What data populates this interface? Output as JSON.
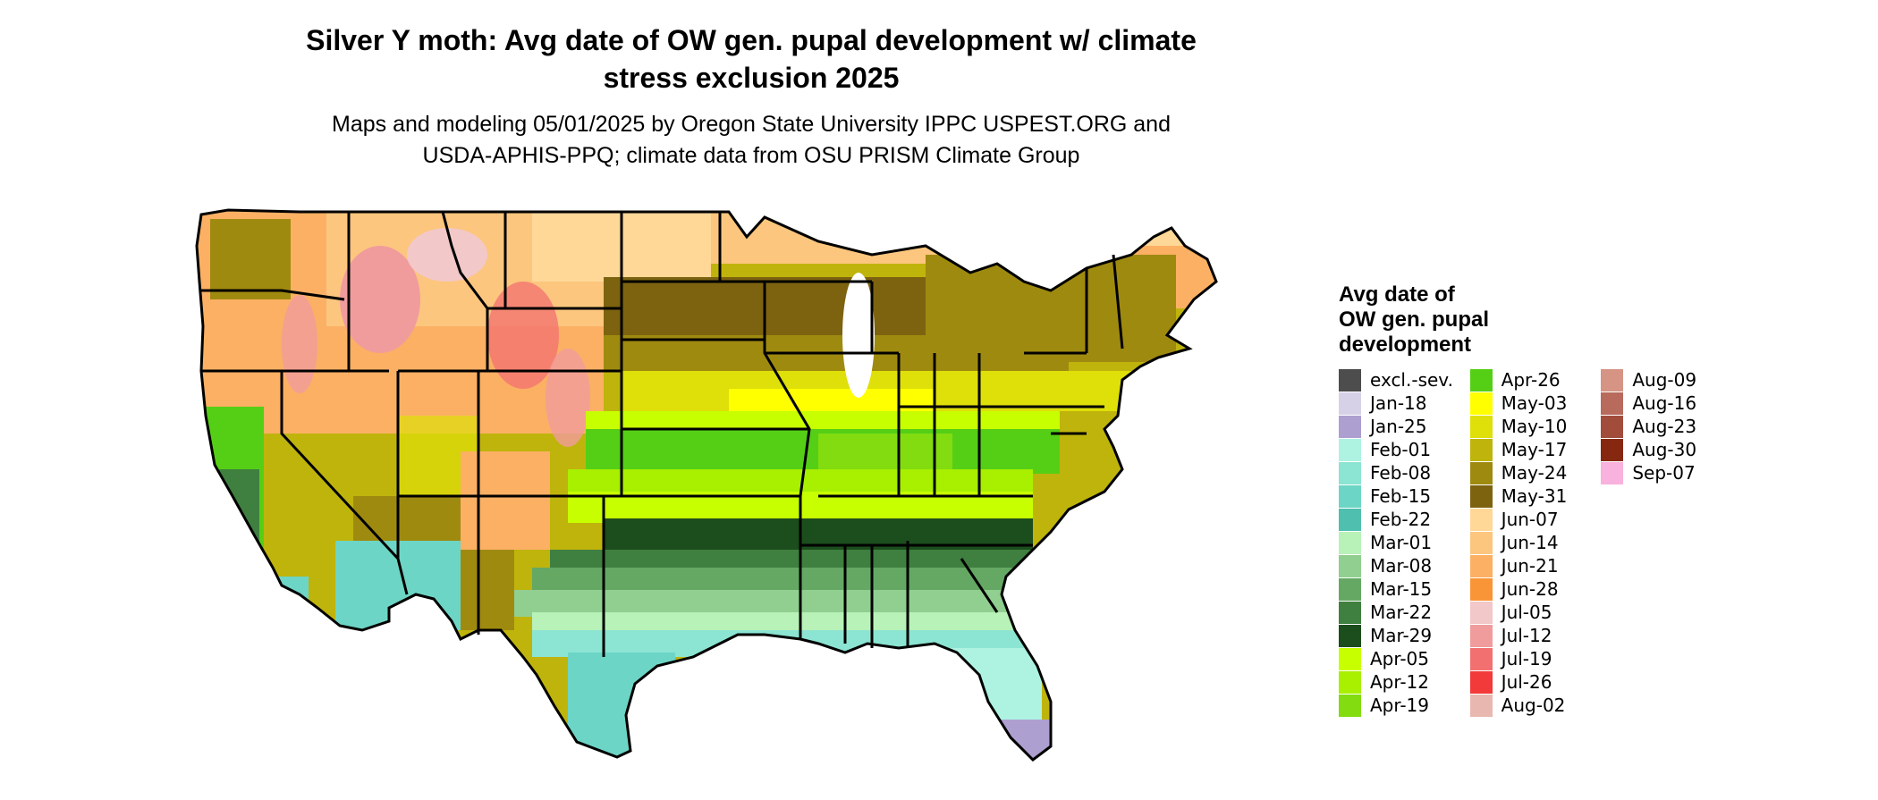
{
  "title_line1": "Silver Y moth: Avg date of OW gen. pupal development w/ climate",
  "title_line2": "stress exclusion 2025",
  "subtitle_line1": "Maps and modeling 05/01/2025 by Oregon State University IPPC USPEST.ORG and",
  "subtitle_line2": "USDA-APHIS-PPQ; climate data from OSU PRISM Climate Group",
  "legend": {
    "title_line1": "Avg date of",
    "title_line2": "OW gen. pupal",
    "title_line3": "development",
    "columns": [
      [
        {
          "label": "excl.-sev.",
          "color": "#4d4d4d"
        },
        {
          "label": "Jan-18",
          "color": "#d7d1e8"
        },
        {
          "label": "Jan-25",
          "color": "#ad9fcf"
        },
        {
          "label": "Feb-01",
          "color": "#aef2e2"
        },
        {
          "label": "Feb-08",
          "color": "#8ce4d2"
        },
        {
          "label": "Feb-15",
          "color": "#6dd5c5"
        },
        {
          "label": "Feb-22",
          "color": "#4fbfaf"
        },
        {
          "label": "Mar-01",
          "color": "#b8f2b8"
        },
        {
          "label": "Mar-08",
          "color": "#90cf90"
        },
        {
          "label": "Mar-15",
          "color": "#64a864"
        },
        {
          "label": "Mar-22",
          "color": "#3f7f3f"
        },
        {
          "label": "Mar-29",
          "color": "#1c4d1c"
        },
        {
          "label": "Apr-05",
          "color": "#c8ff00"
        },
        {
          "label": "Apr-12",
          "color": "#a8ef00"
        },
        {
          "label": "Apr-19",
          "color": "#82dc10"
        }
      ],
      [
        {
          "label": "Apr-26",
          "color": "#55cf16"
        },
        {
          "label": "May-03",
          "color": "#ffff00"
        },
        {
          "label": "May-10",
          "color": "#dfdf0a"
        },
        {
          "label": "May-17",
          "color": "#bfb40c"
        },
        {
          "label": "May-24",
          "color": "#9f8a10"
        },
        {
          "label": "May-31",
          "color": "#7d6310"
        },
        {
          "label": "Jun-07",
          "color": "#ffd898"
        },
        {
          "label": "Jun-14",
          "color": "#fcc67e"
        },
        {
          "label": "Jun-21",
          "color": "#fbb064"
        },
        {
          "label": "Jun-28",
          "color": "#f99536"
        },
        {
          "label": "Jul-05",
          "color": "#f3c8c8"
        },
        {
          "label": "Jul-12",
          "color": "#f19c9c"
        },
        {
          "label": "Jul-19",
          "color": "#f37070"
        },
        {
          "label": "Jul-26",
          "color": "#f23a3a"
        },
        {
          "label": "Aug-02",
          "color": "#e8b8b0"
        }
      ],
      [
        {
          "label": "Aug-09",
          "color": "#d59484"
        },
        {
          "label": "Aug-16",
          "color": "#b86a5c"
        },
        {
          "label": "Aug-23",
          "color": "#a24c3c"
        },
        {
          "label": "Aug-30",
          "color": "#862810"
        },
        {
          "label": "Sep-07",
          "color": "#f9b1dd"
        }
      ]
    ]
  }
}
